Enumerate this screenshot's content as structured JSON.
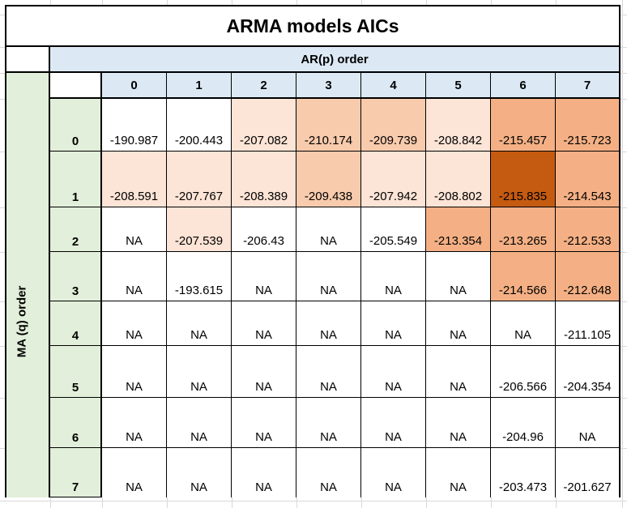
{
  "title": "ARMA models AICs",
  "ar_header": "AR(p) order",
  "ma_header": "MA (q) order",
  "columns": [
    "0",
    "1",
    "2",
    "3",
    "4",
    "5",
    "6",
    "7"
  ],
  "rows": [
    "0",
    "1",
    "2",
    "3",
    "4",
    "5",
    "6",
    "7"
  ],
  "cells": [
    [
      "-190.987",
      "-200.443",
      "-207.082",
      "-210.174",
      "-209.739",
      "-208.842",
      "-215.457",
      "-215.723"
    ],
    [
      "-208.591",
      "-207.767",
      "-208.389",
      "-209.438",
      "-207.942",
      "-208.802",
      "-215.835",
      "-214.543"
    ],
    [
      "NA",
      "-207.539",
      "-206.43",
      "NA",
      "-205.549",
      "-213.354",
      "-213.265",
      "-212.533"
    ],
    [
      "NA",
      "-193.615",
      "NA",
      "NA",
      "NA",
      "NA",
      "-214.566",
      "-212.648"
    ],
    [
      "NA",
      "NA",
      "NA",
      "NA",
      "NA",
      "NA",
      "NA",
      "-211.105"
    ],
    [
      "NA",
      "NA",
      "NA",
      "NA",
      "NA",
      "NA",
      "-206.566",
      "-204.354"
    ],
    [
      "NA",
      "NA",
      "NA",
      "NA",
      "NA",
      "NA",
      "-204.96",
      "NA"
    ],
    [
      "NA",
      "NA",
      "NA",
      "NA",
      "NA",
      "NA",
      "-203.473",
      "-201.627"
    ]
  ],
  "cell_colors": [
    [
      "#ffffff",
      "#ffffff",
      "#fce4d6",
      "#f8cbad",
      "#f8cbad",
      "#fce4d6",
      "#f4b084",
      "#f4b084"
    ],
    [
      "#fce4d6",
      "#fce4d6",
      "#fce4d6",
      "#f8cbad",
      "#fce4d6",
      "#fce4d6",
      "#c55a11",
      "#f4b084"
    ],
    [
      "#ffffff",
      "#fce4d6",
      "#ffffff",
      "#ffffff",
      "#ffffff",
      "#f4b084",
      "#f4b084",
      "#f4b084"
    ],
    [
      "#ffffff",
      "#ffffff",
      "#ffffff",
      "#ffffff",
      "#ffffff",
      "#ffffff",
      "#f4b084",
      "#f4b084"
    ],
    [
      "#ffffff",
      "#ffffff",
      "#ffffff",
      "#ffffff",
      "#ffffff",
      "#ffffff",
      "#ffffff",
      "#ffffff"
    ],
    [
      "#ffffff",
      "#ffffff",
      "#ffffff",
      "#ffffff",
      "#ffffff",
      "#ffffff",
      "#ffffff",
      "#ffffff"
    ],
    [
      "#ffffff",
      "#ffffff",
      "#ffffff",
      "#ffffff",
      "#ffffff",
      "#ffffff",
      "#ffffff",
      "#ffffff"
    ],
    [
      "#ffffff",
      "#ffffff",
      "#ffffff",
      "#ffffff",
      "#ffffff",
      "#ffffff",
      "#ffffff",
      "#ffffff"
    ]
  ]
}
